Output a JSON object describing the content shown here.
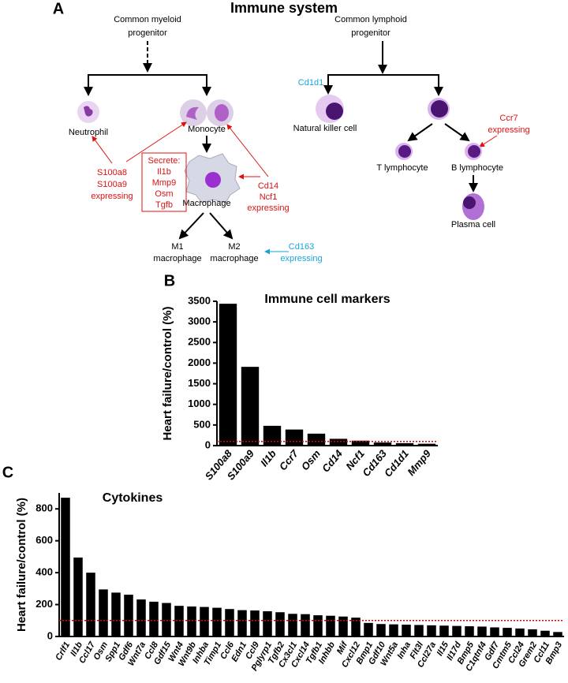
{
  "panel_a": {
    "label": "A",
    "title": "Immune system",
    "myeloid_progenitor": [
      "Common myeloid",
      "progenitor"
    ],
    "neutrophil": "Neutrophil",
    "monocyte": "Monocyte",
    "macrophage": "Macrophage",
    "m1": [
      "M1",
      "macrophage"
    ],
    "m2": [
      "M2",
      "macrophage"
    ],
    "secrete": [
      "Secrete:",
      "Il1b",
      "Mmp9",
      "Osm",
      "Tgfb"
    ],
    "neutrophil_markers": [
      "S100a8",
      "S100a9",
      "expressing"
    ],
    "monocyte_markers": [
      "Cd14",
      "Ncf1",
      "expressing"
    ],
    "m2_markers": [
      "Cd163",
      "expressing"
    ],
    "lymphoid_progenitor": [
      "Common lymphoid",
      "progenitor"
    ],
    "nk_marker": "Cd1d1",
    "nk": "Natural killer cell",
    "b_marker": [
      "Ccr7",
      "expressing"
    ],
    "t": "T lymphocyte",
    "b": "B lymphocyte",
    "plasma": "Plasma cell"
  },
  "chart_data": [
    {
      "type": "bar",
      "panel": "B",
      "title": "Immune cell markers",
      "y_label": "Heart failure/control (%)",
      "categories": [
        "S100a8",
        "S100a9",
        "Il1b",
        "Ccr7",
        "Osm",
        "Cd14",
        "Ncf1",
        "Cd163",
        "Cd1d1",
        "Mmp9"
      ],
      "values": [
        3440,
        1910,
        480,
        390,
        290,
        165,
        120,
        75,
        60,
        45
      ],
      "color": "#000000",
      "ylim": [
        0,
        3500
      ],
      "yticks": [
        0,
        500,
        1000,
        1500,
        2000,
        2500,
        3000,
        3500
      ],
      "reference_line": 100,
      "reference_color": "#e00000"
    },
    {
      "type": "bar",
      "panel": "C",
      "title": "Cytokines",
      "y_label": "Heart failure/control (%)",
      "categories": [
        "Crlf1",
        "Il1b",
        "Ccl17",
        "Osm",
        "Spp1",
        "Gdf6",
        "Wnt7a",
        "Ccl8",
        "Gdf15",
        "Wnt4",
        "Wnt9b",
        "Inhba",
        "Timp1",
        "Ccl6",
        "Edn1",
        "Ccl9",
        "Pglyrp1",
        "Tgfb2",
        "Cx3cl1",
        "Cxcl14",
        "Tgfb1",
        "Inhbb",
        "Mif",
        "Cxcl12",
        "Bmp1",
        "Gdf10",
        "Wnt5a",
        "Inha",
        "Flt3l",
        "Ccl27a",
        "Il15",
        "Il17d",
        "Bmp5",
        "C1qtnf4",
        "Gdf7",
        "Cmtm5",
        "Ccl24",
        "Grem2",
        "Ccl11",
        "Bmp3"
      ],
      "values": [
        870,
        495,
        400,
        295,
        275,
        262,
        232,
        218,
        210,
        192,
        188,
        185,
        180,
        172,
        165,
        163,
        158,
        152,
        142,
        140,
        133,
        130,
        125,
        118,
        85,
        78,
        76,
        74,
        72,
        70,
        68,
        66,
        64,
        62,
        57,
        54,
        50,
        45,
        36,
        28
      ],
      "color": "#000000",
      "ylim": [
        0,
        900
      ],
      "yticks": [
        0,
        200,
        400,
        600,
        800
      ],
      "reference_line": 100,
      "reference_color": "#e00000"
    }
  ]
}
